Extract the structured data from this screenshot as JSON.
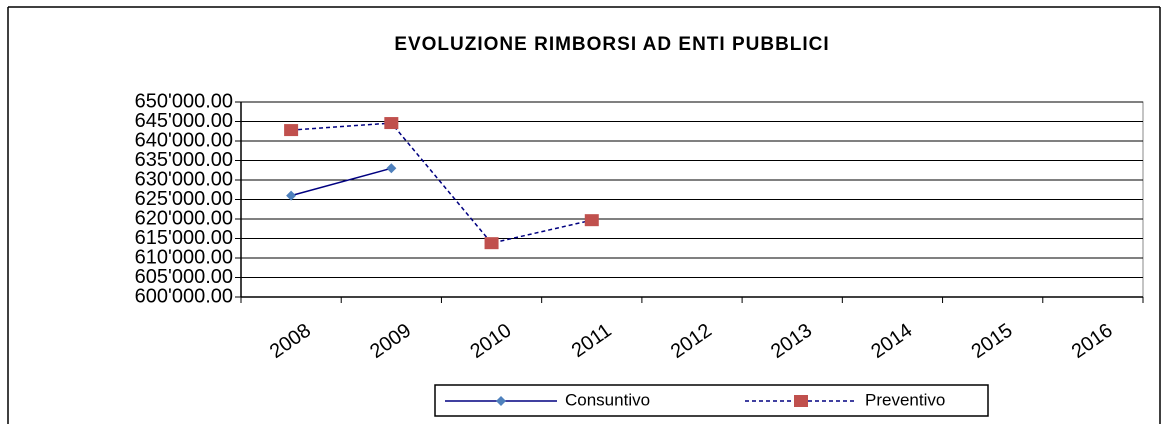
{
  "chart_data": {
    "type": "line",
    "title": "EVOLUZIONE RIMBORSI AD ENTI PUBBLICI",
    "categories": [
      "2008",
      "2009",
      "2010",
      "2011",
      "2012",
      "2013",
      "2014",
      "2015",
      "2016"
    ],
    "series": [
      {
        "name": "Consuntivo",
        "color": "#000080",
        "marker_color": "#4f81bd",
        "marker": "diamond",
        "dash": false,
        "values": [
          626000,
          633000,
          null,
          null,
          null,
          null,
          null,
          null,
          null
        ]
      },
      {
        "name": "Preventivo",
        "color": "#000080",
        "marker_color": "#c0504d",
        "marker": "square",
        "dash": true,
        "values": [
          642800,
          644600,
          613800,
          619700,
          null,
          null,
          null,
          null,
          null
        ]
      }
    ],
    "ylim": [
      600000,
      650000
    ],
    "yticks": [
      {
        "value": 600000,
        "label": "600'000.00"
      },
      {
        "value": 605000,
        "label": "605'000.00"
      },
      {
        "value": 610000,
        "label": "610'000.00"
      },
      {
        "value": 615000,
        "label": "615'000.00"
      },
      {
        "value": 620000,
        "label": "620'000.00"
      },
      {
        "value": 625000,
        "label": "625'000.00"
      },
      {
        "value": 630000,
        "label": "630'000.00"
      },
      {
        "value": 635000,
        "label": "635'000.00"
      },
      {
        "value": 640000,
        "label": "640'000.00"
      },
      {
        "value": 645000,
        "label": "645'000.00"
      },
      {
        "value": 650000,
        "label": "650'000.00"
      }
    ],
    "grid": true,
    "legend": "bottom"
  }
}
